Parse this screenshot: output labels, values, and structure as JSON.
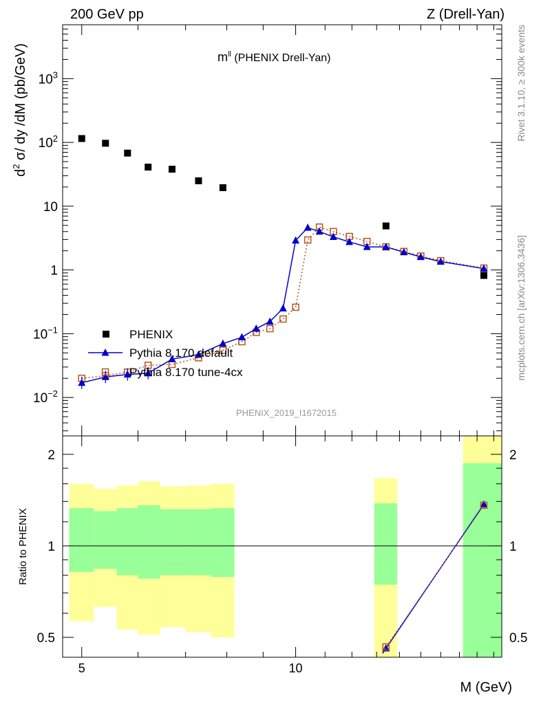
{
  "header": {
    "left": "200 GeV pp",
    "right": "Z (Drell-Yan)",
    "plot_title_main": "m",
    "plot_title_sup": "ll",
    "plot_title_rest": " (PHENIX Drell-Yan)",
    "analysis_id": "PHENIX_2019_I1672015",
    "side_rivet": "Rivet 3.1.10, ≥ 300k events",
    "side_mcplots": "mcplots.cern.ch [arXiv:1306.3436]"
  },
  "chart_data": [
    {
      "type": "scatter",
      "panel": "main",
      "ylabel": "d² σ/ dy /dM (pb/GeV)",
      "xlabel": "M (GeV)",
      "xscale": "log",
      "yscale": "log",
      "xlim": [
        4.7,
        19.5
      ],
      "ylim": [
        0.0025,
        7000
      ],
      "xticks": [
        {
          "value": 5,
          "label": "5"
        },
        {
          "value": 10,
          "label": "10"
        }
      ],
      "yticks": [
        {
          "value": 0.01,
          "base": "10",
          "exp": "−2"
        },
        {
          "value": 0.1,
          "base": "10",
          "exp": "−1"
        },
        {
          "value": 1,
          "base": "1",
          "exp": ""
        },
        {
          "value": 10,
          "base": "10",
          "exp": ""
        },
        {
          "value": 100,
          "base": "10",
          "exp": "2"
        },
        {
          "value": 1000,
          "base": "10",
          "exp": "3"
        }
      ],
      "legend": {
        "placement": "bottom-left"
      },
      "series": [
        {
          "name": "PHENIX",
          "color": "#000000",
          "marker": "square",
          "x": [
            5.0,
            5.4,
            5.8,
            6.2,
            6.7,
            7.3,
            7.9,
            13.4,
            18.4
          ],
          "y": [
            115,
            97,
            68,
            41,
            38,
            25,
            19.5,
            4.9,
            0.82
          ]
        },
        {
          "name": "Pythia 8.170 default",
          "color": "#0000cc",
          "marker": "triangle",
          "x": [
            5.0,
            5.4,
            5.8,
            6.2,
            6.7,
            7.3,
            7.9,
            8.4,
            8.8,
            9.2,
            9.6,
            10.0,
            10.4,
            10.8,
            11.3,
            11.9,
            12.6,
            13.4,
            14.2,
            15.0,
            16.0,
            18.4
          ],
          "y": [
            0.017,
            0.021,
            0.023,
            0.024,
            0.04,
            0.047,
            0.07,
            0.088,
            0.12,
            0.155,
            0.25,
            2.9,
            4.6,
            4.0,
            3.3,
            2.75,
            2.3,
            2.3,
            1.9,
            1.6,
            1.35,
            1.05
          ]
        },
        {
          "name": "Pythia 8.170 tune-4cx",
          "color": "#b5551f",
          "marker": "open-square",
          "x": [
            5.0,
            5.4,
            5.8,
            6.2,
            6.7,
            7.3,
            7.9,
            8.4,
            8.8,
            9.2,
            9.6,
            10.0,
            10.4,
            10.8,
            11.3,
            11.9,
            12.6,
            13.4,
            14.2,
            15.0,
            16.0,
            18.4
          ],
          "y": [
            0.02,
            0.022,
            0.025,
            0.032,
            0.033,
            0.042,
            0.055,
            0.075,
            0.105,
            0.12,
            0.17,
            0.26,
            2.95,
            4.7,
            4.0,
            3.35,
            2.8,
            2.3,
            1.95,
            1.65,
            1.4,
            1.07
          ]
        }
      ]
    },
    {
      "type": "line",
      "panel": "ratio",
      "ylabel": "Ratio to PHENIX",
      "xlabel": "M (GeV)",
      "xscale": "log",
      "yscale": "log",
      "xlim": [
        4.7,
        19.5
      ],
      "ylim": [
        0.43,
        2.3
      ],
      "yticks": [
        {
          "value": 0.5,
          "label": "0.5"
        },
        {
          "value": 1,
          "label": "1"
        },
        {
          "value": 2,
          "label": "2"
        }
      ],
      "reference_line": 1,
      "bands": [
        {
          "lo": 4.8,
          "hi": 5.2,
          "inner": [
            0.82,
            1.33
          ],
          "outer": [
            0.565,
            1.6
          ]
        },
        {
          "lo": 5.2,
          "hi": 5.6,
          "inner": [
            0.84,
            1.3
          ],
          "outer": [
            0.63,
            1.54
          ]
        },
        {
          "lo": 5.6,
          "hi": 6.0,
          "inner": [
            0.8,
            1.33
          ],
          "outer": [
            0.53,
            1.58
          ]
        },
        {
          "lo": 6.0,
          "hi": 6.45,
          "inner": [
            0.78,
            1.36
          ],
          "outer": [
            0.51,
            1.63
          ]
        },
        {
          "lo": 6.45,
          "hi": 7.0,
          "inner": [
            0.8,
            1.32
          ],
          "outer": [
            0.54,
            1.57
          ]
        },
        {
          "lo": 7.0,
          "hi": 7.6,
          "inner": [
            0.8,
            1.32
          ],
          "outer": [
            0.52,
            1.58
          ]
        },
        {
          "lo": 7.6,
          "hi": 8.2,
          "inner": [
            0.79,
            1.33
          ],
          "outer": [
            0.5,
            1.6
          ]
        },
        {
          "lo": 12.9,
          "hi": 13.9,
          "inner": [
            0.745,
            1.38
          ],
          "outer": [
            0.43,
            1.67
          ]
        },
        {
          "lo": 17.2,
          "hi": 19.5,
          "inner": [
            0.43,
            1.87
          ],
          "outer": [
            0.43,
            2.3
          ]
        }
      ],
      "series": [
        {
          "name": "Pythia 8.170 default",
          "color": "#0000cc",
          "x": [
            13.4,
            18.4
          ],
          "y": [
            0.46,
            1.37
          ],
          "x_edge": 13.25
        },
        {
          "name": "Pythia 8.170 tune-4cx",
          "color": "#b5551f",
          "x": [
            13.4,
            18.4
          ],
          "y": [
            0.465,
            1.36
          ],
          "x_edge": 13.25
        }
      ]
    }
  ]
}
